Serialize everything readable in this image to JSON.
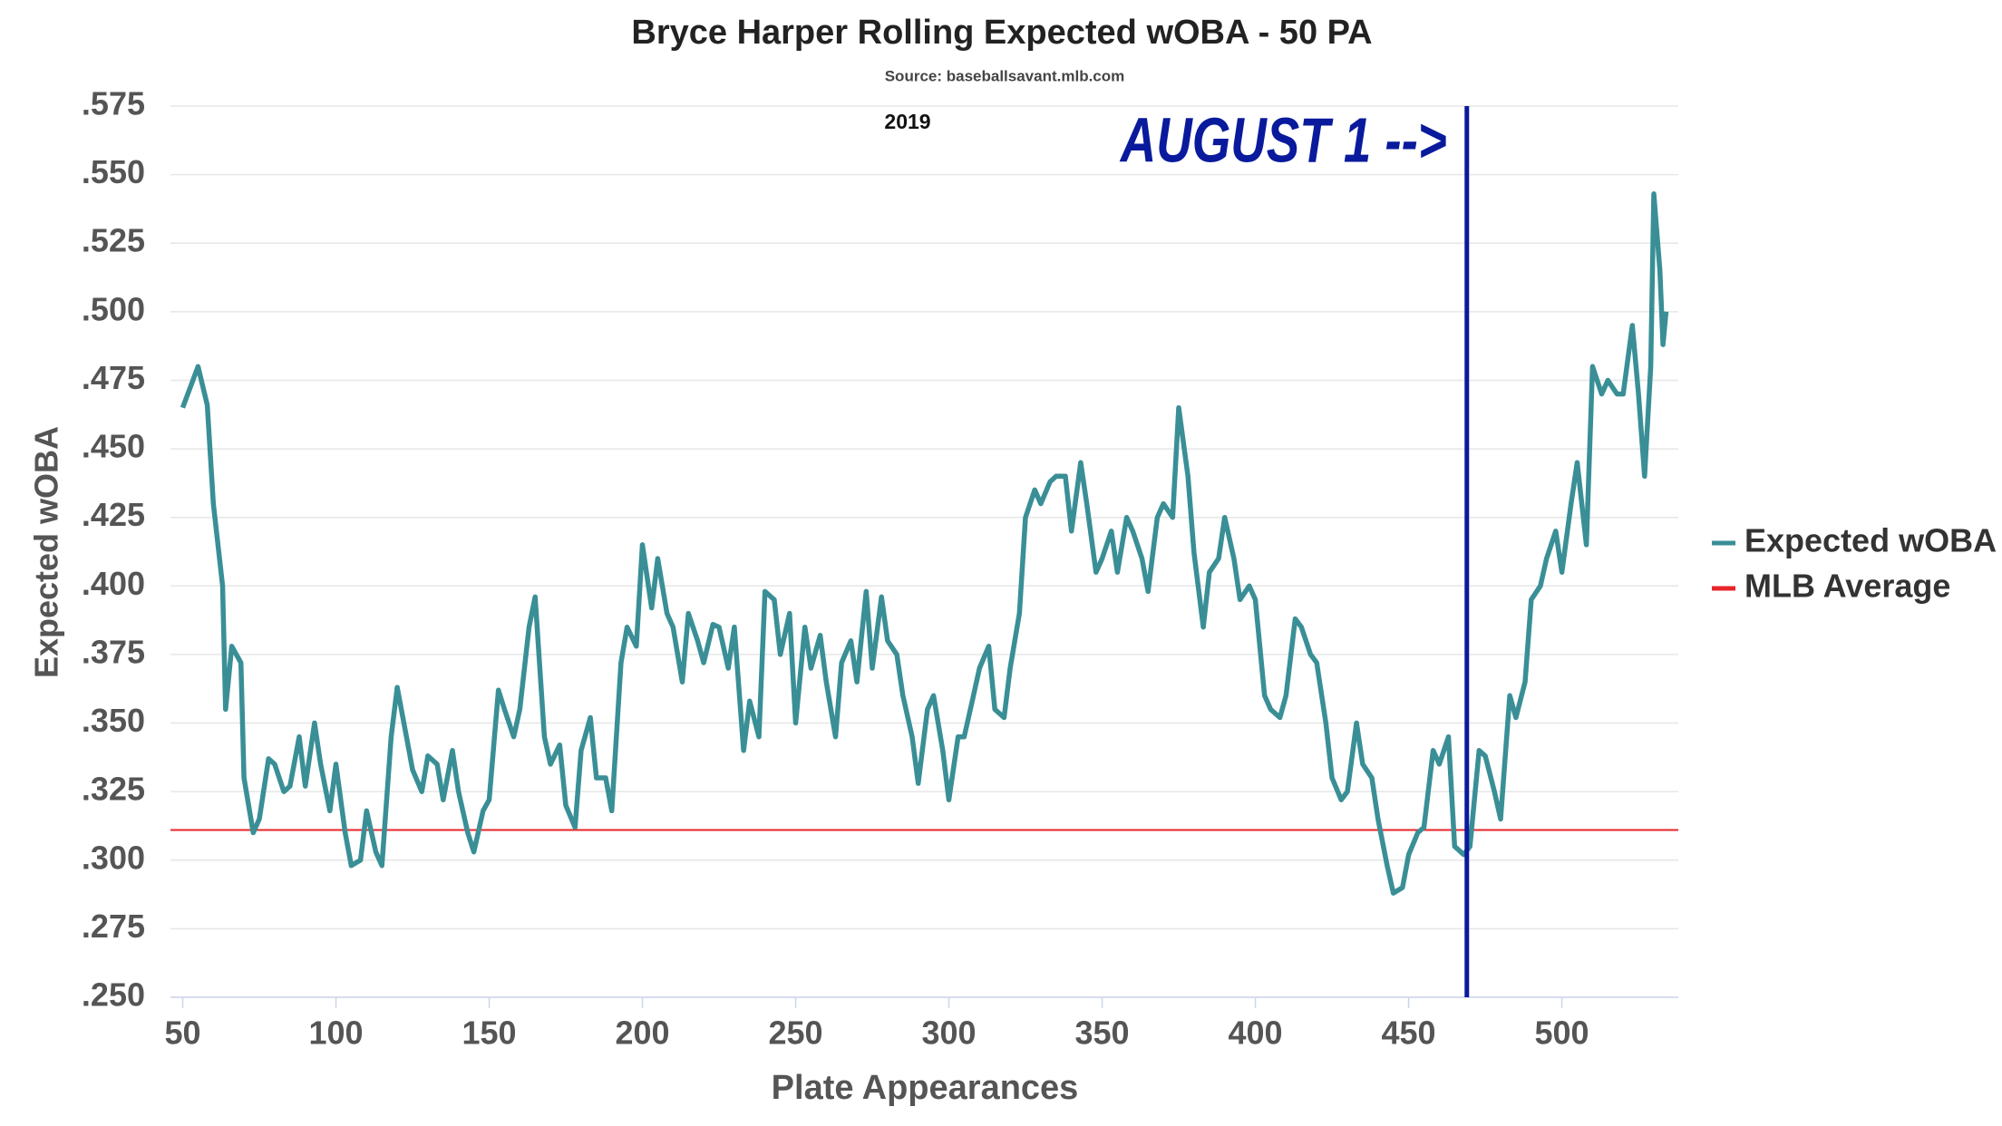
{
  "chart_data": {
    "type": "line",
    "title": "Bryce Harper Rolling Expected wOBA - 50 PA",
    "subtitle": "Source: baseballsavant.mlb.com",
    "note": "2019",
    "x_label": "Plate Appearances",
    "y_label": "Expected wOBA",
    "xlim": [
      46,
      538
    ],
    "ylim": [
      0.25,
      0.575
    ],
    "xticks": [
      50,
      100,
      150,
      200,
      250,
      300,
      350,
      400,
      450,
      500
    ],
    "yticks": [
      {
        "value": 0.25,
        "label": ".250"
      },
      {
        "value": 0.275,
        "label": ".275"
      },
      {
        "value": 0.3,
        "label": ".300"
      },
      {
        "value": 0.325,
        "label": ".325"
      },
      {
        "value": 0.35,
        "label": ".350"
      },
      {
        "value": 0.375,
        "label": ".375"
      },
      {
        "value": 0.4,
        "label": ".400"
      },
      {
        "value": 0.425,
        "label": ".425"
      },
      {
        "value": 0.45,
        "label": ".450"
      },
      {
        "value": 0.475,
        "label": ".475"
      },
      {
        "value": 0.5,
        "label": ".500"
      },
      {
        "value": 0.525,
        "label": ".525"
      },
      {
        "value": 0.55,
        "label": ".550"
      },
      {
        "value": 0.575,
        "label": ".575"
      }
    ],
    "grid": true,
    "legend": "right",
    "series": [
      {
        "name": "Expected wOBA",
        "color": "#3a8f96",
        "x": [
          50,
          55,
          58,
          60,
          63,
          64,
          66,
          69,
          70,
          73,
          75,
          78,
          80,
          83,
          85,
          88,
          90,
          93,
          95,
          98,
          100,
          103,
          105,
          108,
          110,
          113,
          115,
          118,
          120,
          123,
          125,
          128,
          130,
          133,
          135,
          138,
          140,
          143,
          145,
          148,
          150,
          153,
          155,
          158,
          160,
          163,
          165,
          168,
          170,
          173,
          175,
          178,
          180,
          183,
          185,
          188,
          190,
          193,
          195,
          198,
          200,
          203,
          205,
          208,
          210,
          213,
          215,
          218,
          220,
          223,
          225,
          228,
          230,
          233,
          235,
          238,
          240,
          243,
          245,
          248,
          250,
          253,
          255,
          258,
          260,
          263,
          265,
          268,
          270,
          273,
          275,
          278,
          280,
          283,
          285,
          288,
          290,
          293,
          295,
          298,
          300,
          303,
          305,
          308,
          310,
          313,
          315,
          318,
          320,
          323,
          325,
          328,
          330,
          333,
          335,
          338,
          340,
          343,
          345,
          348,
          350,
          353,
          355,
          358,
          360,
          363,
          365,
          368,
          370,
          373,
          375,
          378,
          380,
          383,
          385,
          388,
          390,
          393,
          395,
          398,
          400,
          403,
          405,
          408,
          410,
          413,
          415,
          418,
          420,
          423,
          425,
          428,
          430,
          433,
          435,
          438,
          440,
          443,
          445,
          448,
          450,
          453,
          455,
          458,
          460,
          463,
          465,
          468,
          470,
          473,
          475,
          478,
          480,
          483,
          485,
          488,
          490,
          493,
          495,
          498,
          500,
          503,
          505,
          508,
          510,
          513,
          515,
          518,
          520,
          523,
          525,
          527,
          529,
          530,
          532,
          533,
          534
        ],
        "values": [
          0.465,
          0.48,
          0.466,
          0.43,
          0.4,
          0.355,
          0.378,
          0.372,
          0.33,
          0.31,
          0.315,
          0.337,
          0.335,
          0.325,
          0.327,
          0.345,
          0.327,
          0.35,
          0.335,
          0.318,
          0.335,
          0.31,
          0.298,
          0.3,
          0.318,
          0.303,
          0.298,
          0.345,
          0.363,
          0.345,
          0.333,
          0.325,
          0.338,
          0.335,
          0.322,
          0.34,
          0.325,
          0.31,
          0.303,
          0.318,
          0.322,
          0.362,
          0.355,
          0.345,
          0.355,
          0.385,
          0.396,
          0.345,
          0.335,
          0.342,
          0.32,
          0.312,
          0.34,
          0.352,
          0.33,
          0.33,
          0.318,
          0.372,
          0.385,
          0.378,
          0.415,
          0.392,
          0.41,
          0.39,
          0.385,
          0.365,
          0.39,
          0.38,
          0.372,
          0.386,
          0.385,
          0.37,
          0.385,
          0.34,
          0.358,
          0.345,
          0.398,
          0.395,
          0.375,
          0.39,
          0.35,
          0.385,
          0.37,
          0.382,
          0.365,
          0.345,
          0.372,
          0.38,
          0.365,
          0.398,
          0.37,
          0.396,
          0.38,
          0.375,
          0.36,
          0.345,
          0.328,
          0.355,
          0.36,
          0.34,
          0.322,
          0.345,
          0.345,
          0.36,
          0.37,
          0.378,
          0.355,
          0.352,
          0.37,
          0.39,
          0.425,
          0.435,
          0.43,
          0.438,
          0.44,
          0.44,
          0.42,
          0.445,
          0.43,
          0.405,
          0.41,
          0.42,
          0.405,
          0.425,
          0.42,
          0.41,
          0.398,
          0.425,
          0.43,
          0.425,
          0.465,
          0.44,
          0.412,
          0.385,
          0.405,
          0.41,
          0.425,
          0.41,
          0.395,
          0.4,
          0.395,
          0.36,
          0.355,
          0.352,
          0.36,
          0.388,
          0.385,
          0.375,
          0.372,
          0.35,
          0.33,
          0.322,
          0.325,
          0.35,
          0.335,
          0.33,
          0.315,
          0.298,
          0.288,
          0.29,
          0.302,
          0.31,
          0.312,
          0.34,
          0.335,
          0.345,
          0.305,
          0.302,
          0.305,
          0.34,
          0.338,
          0.325,
          0.315,
          0.36,
          0.352,
          0.365,
          0.395,
          0.4,
          0.41,
          0.42,
          0.405,
          0.43,
          0.445,
          0.415,
          0.48,
          0.47,
          0.475,
          0.47,
          0.47,
          0.495,
          0.47,
          0.44,
          0.48,
          0.543,
          0.515,
          0.488,
          0.5
        ]
      }
    ],
    "reference_line": {
      "name": "MLB Average",
      "value": 0.311,
      "color": "#e8252a"
    },
    "vline": {
      "x": 469,
      "label": "AUGUST 1 -->",
      "color": "#0a1a9c"
    }
  }
}
